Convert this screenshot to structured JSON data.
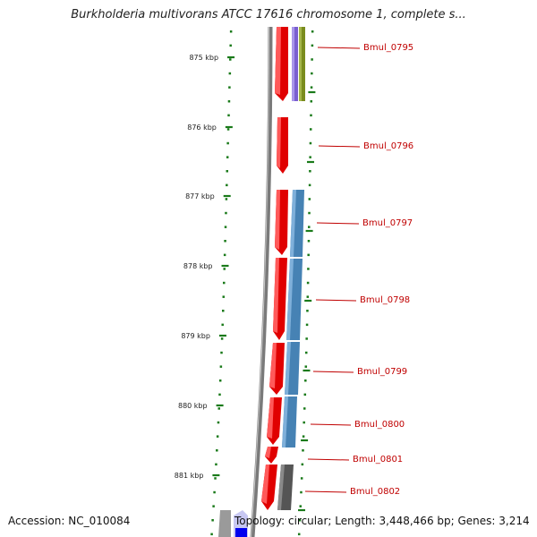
{
  "title": "Burkholderia multivorans ATCC 17616 chromosome 1, complete s...",
  "footer": {
    "accession": "Accession: NC_010084",
    "summary": "Topology: circular; Length: 3,448,466 bp; Genes: 3,214"
  },
  "ruler": {
    "ticks": [
      "875 kbp",
      "876 kbp",
      "877 kbp",
      "878 kbp",
      "879 kbp",
      "880 kbp",
      "881 kbp"
    ]
  },
  "genes": [
    "Bmul_0795",
    "Bmul_0796",
    "Bmul_0797",
    "Bmul_0798",
    "Bmul_0799",
    "Bmul_0800",
    "Bmul_0801",
    "Bmul_0802"
  ],
  "colors": {
    "cds": "#e00000",
    "blue_feature": "#4682b4",
    "gray_feature": "#555555",
    "purple_feature": "#7a5fd0",
    "olive_feature": "#7a8c1e",
    "backbone": "#888888",
    "tick": "#1a7a1a",
    "label": "#c00000"
  }
}
